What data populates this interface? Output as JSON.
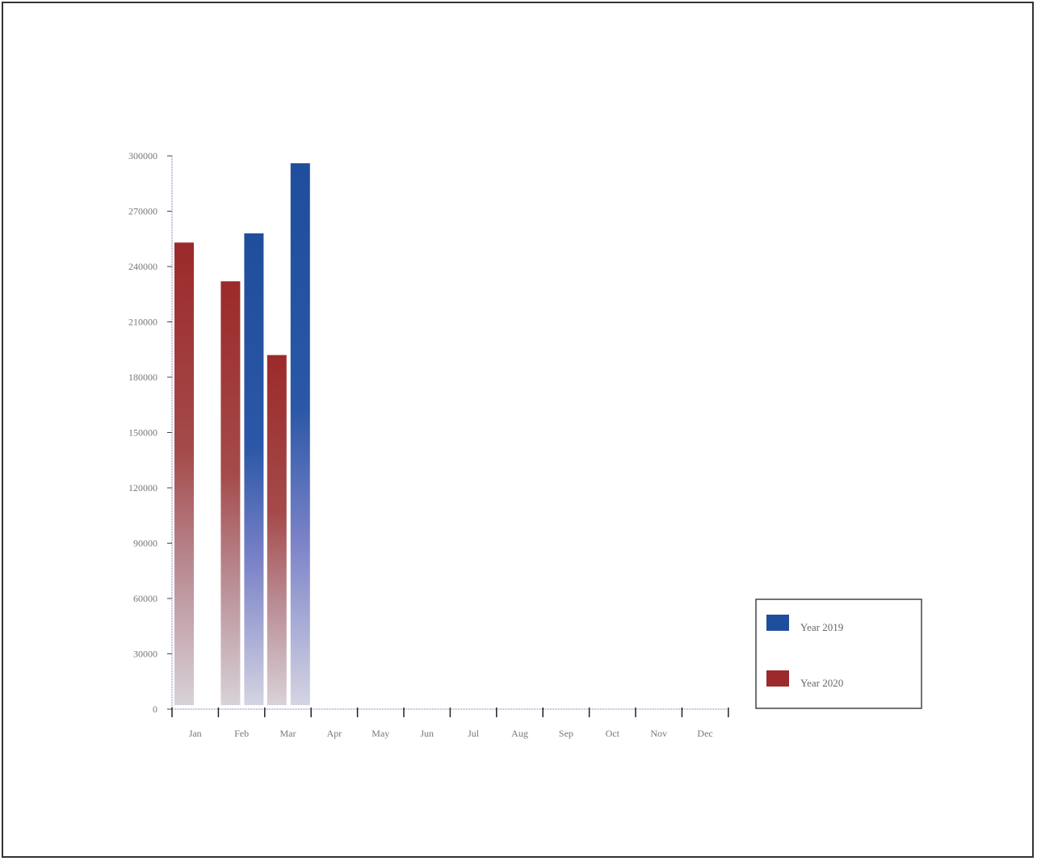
{
  "chart_data": {
    "type": "bar",
    "title": "",
    "xlabel": "",
    "ylabel": "",
    "categories": [
      "Jan",
      "Feb",
      "Mar",
      "Apr",
      "May",
      "Jun",
      "Jul",
      "Aug",
      "Sep",
      "Oct",
      "Nov",
      "Dec"
    ],
    "ylim": [
      0,
      300000
    ],
    "yticks": [
      "0",
      "30000",
      "60000",
      "90000",
      "120000",
      "150000",
      "180000",
      "210000",
      "240000",
      "270000",
      "300000"
    ],
    "series": [
      {
        "name": "Year 2019",
        "color": "#1f4e9c",
        "values": [
          null,
          258000,
          296000,
          null,
          null,
          null,
          null,
          null,
          null,
          null,
          null,
          null
        ]
      },
      {
        "name": "Year 2020",
        "color": "#9c2a2a",
        "values": [
          253000,
          232000,
          192000,
          null,
          null,
          null,
          null,
          null,
          null,
          null,
          null,
          null
        ]
      }
    ],
    "legend_position": "bottom-right",
    "grid": false
  }
}
